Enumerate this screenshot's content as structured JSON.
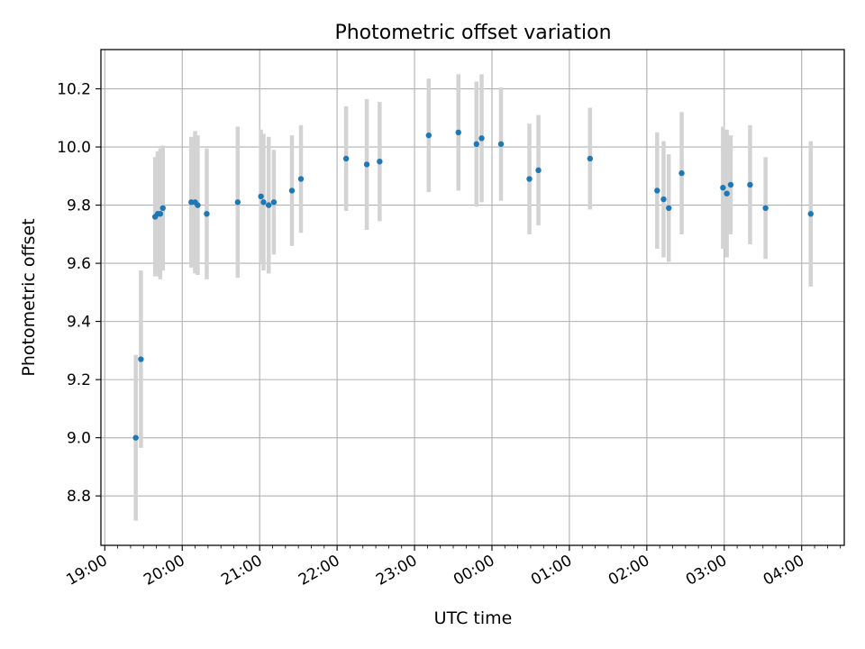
{
  "chart_data": {
    "type": "scatter",
    "title": "Photometric offset variation",
    "xlabel": "UTC time",
    "ylabel": "Photometric offset",
    "x_ticks": [
      "19:00",
      "20:00",
      "21:00",
      "22:00",
      "23:00",
      "00:00",
      "01:00",
      "02:00",
      "03:00",
      "04:00"
    ],
    "x_tick_hours": [
      19,
      20,
      21,
      22,
      23,
      24,
      25,
      26,
      27,
      28
    ],
    "y_ticks": [
      "8.8",
      "9.0",
      "9.2",
      "9.4",
      "9.6",
      "9.8",
      "10.0",
      "10.2"
    ],
    "y_tick_values": [
      8.8,
      9.0,
      9.2,
      9.4,
      9.6,
      9.8,
      10.0,
      10.2
    ],
    "xlim": [
      "18:57",
      "04:33"
    ],
    "ylim": [
      8.63,
      10.335
    ],
    "grid": true,
    "colors": {
      "points": "#1f77b4",
      "errorbars": "#d3d3d3",
      "grid": "#b0b0b0"
    },
    "points": [
      {
        "time": "19:24",
        "offset": 9.0,
        "error": 0.285
      },
      {
        "time": "19:28",
        "offset": 9.27,
        "error": 0.305
      },
      {
        "time": "19:39",
        "offset": 9.76,
        "error": 0.205
      },
      {
        "time": "19:41",
        "offset": 9.77,
        "error": 0.215
      },
      {
        "time": "19:43",
        "offset": 9.77,
        "error": 0.225
      },
      {
        "time": "19:45",
        "offset": 9.79,
        "error": 0.215
      },
      {
        "time": "20:07",
        "offset": 9.81,
        "error": 0.225
      },
      {
        "time": "20:10",
        "offset": 9.81,
        "error": 0.245
      },
      {
        "time": "20:12",
        "offset": 9.8,
        "error": 0.24
      },
      {
        "time": "20:19",
        "offset": 9.77,
        "error": 0.225
      },
      {
        "time": "20:43",
        "offset": 9.81,
        "error": 0.26
      },
      {
        "time": "21:01",
        "offset": 9.83,
        "error": 0.23
      },
      {
        "time": "21:03",
        "offset": 9.81,
        "error": 0.235
      },
      {
        "time": "21:07",
        "offset": 9.8,
        "error": 0.235
      },
      {
        "time": "21:11",
        "offset": 9.81,
        "error": 0.18
      },
      {
        "time": "21:25",
        "offset": 9.85,
        "error": 0.19
      },
      {
        "time": "21:32",
        "offset": 9.89,
        "error": 0.185
      },
      {
        "time": "22:07",
        "offset": 9.96,
        "error": 0.18
      },
      {
        "time": "22:23",
        "offset": 9.94,
        "error": 0.225
      },
      {
        "time": "22:33",
        "offset": 9.95,
        "error": 0.205
      },
      {
        "time": "23:11",
        "offset": 10.04,
        "error": 0.195
      },
      {
        "time": "23:34",
        "offset": 10.05,
        "error": 0.2
      },
      {
        "time": "23:48",
        "offset": 10.01,
        "error": 0.215
      },
      {
        "time": "23:52",
        "offset": 10.03,
        "error": 0.22
      },
      {
        "time": "00:07",
        "offset": 10.01,
        "error": 0.195
      },
      {
        "time": "00:29",
        "offset": 9.89,
        "error": 0.19
      },
      {
        "time": "00:36",
        "offset": 9.92,
        "error": 0.19
      },
      {
        "time": "01:16",
        "offset": 9.96,
        "error": 0.175
      },
      {
        "time": "02:08",
        "offset": 9.85,
        "error": 0.2
      },
      {
        "time": "02:13",
        "offset": 9.82,
        "error": 0.2
      },
      {
        "time": "02:17",
        "offset": 9.79,
        "error": 0.185
      },
      {
        "time": "02:27",
        "offset": 9.91,
        "error": 0.21
      },
      {
        "time": "02:59",
        "offset": 9.86,
        "error": 0.21
      },
      {
        "time": "03:02",
        "offset": 9.84,
        "error": 0.22
      },
      {
        "time": "03:05",
        "offset": 9.87,
        "error": 0.17
      },
      {
        "time": "03:20",
        "offset": 9.87,
        "error": 0.205
      },
      {
        "time": "03:32",
        "offset": 9.79,
        "error": 0.175
      },
      {
        "time": "04:07",
        "offset": 9.77,
        "error": 0.25
      }
    ]
  }
}
